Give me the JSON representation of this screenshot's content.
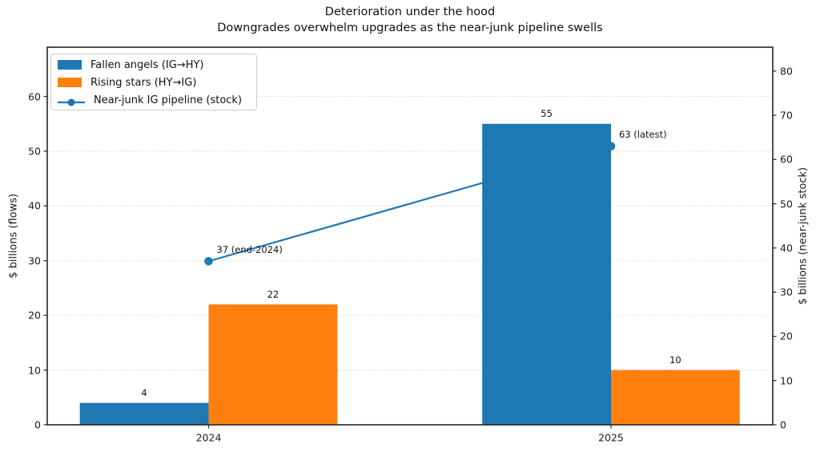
{
  "chart_data": {
    "type": "bar",
    "title": "Deterioration under the hood",
    "subtitle": "Downgrades overwhelm upgrades as the near-junk pipeline swells",
    "categories": [
      "2024",
      "2025"
    ],
    "bar_series": [
      {
        "name": "Fallen angels (IG→HY)",
        "values": [
          4,
          55
        ],
        "value_labels": [
          "4",
          "55"
        ],
        "color": "#1f77b4"
      },
      {
        "name": "Rising stars (HY→IG)",
        "values": [
          22,
          10
        ],
        "value_labels": [
          "22",
          "10"
        ],
        "color": "#ff7f0e"
      }
    ],
    "line_series": {
      "name": "Near-junk IG pipeline (stock)",
      "axis": "right",
      "values": [
        37,
        63
      ],
      "point_labels": [
        "37 (end-2024)",
        "63 (latest)"
      ],
      "color": "#1f77b4"
    },
    "axes": {
      "left": {
        "label": "$ billions (flows)",
        "ticks": [
          0,
          10,
          20,
          30,
          40,
          50,
          60
        ],
        "range": [
          0,
          69
        ]
      },
      "right": {
        "label": "$ billions (near-junk stock)",
        "ticks": [
          0,
          10,
          20,
          30,
          40,
          50,
          60,
          70,
          80
        ],
        "range": [
          0,
          85.4
        ]
      },
      "x": {
        "tick_labels": [
          "2024",
          "2025"
        ]
      }
    },
    "grid": {
      "horizontal": true,
      "style": "dotted",
      "on_axis": "left"
    },
    "legend": {
      "position": "upper-left",
      "entries": [
        "Fallen angels (IG→HY)",
        "Rising stars (HY→IG)",
        "Near-junk IG pipeline (stock)"
      ]
    },
    "colors": {
      "spine": "#262626",
      "grid": "#c9c9c9",
      "text": "#1a1a1a",
      "background": "#ffffff"
    }
  }
}
